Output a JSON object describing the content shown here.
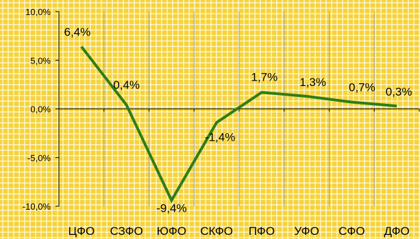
{
  "chart_data": {
    "type": "line",
    "title": "",
    "xlabel": "",
    "ylabel": "",
    "categories": [
      "ЦФО",
      "СЗФО",
      "ЮФО",
      "СКФО",
      "ПФО",
      "УФО",
      "СФО",
      "ДФО"
    ],
    "series": [
      {
        "values": [
          6.4,
          0.4,
          -9.4,
          -1.4,
          1.7,
          1.3,
          0.7,
          0.3
        ],
        "labels": [
          "6,4%",
          "0,4%",
          "-9,4%",
          "-1,4%",
          "1,7%",
          "1,3%",
          "0,7%",
          "0,3%"
        ],
        "color": "#2E7D16"
      }
    ],
    "ylim": [
      -10,
      10
    ],
    "yticks": [
      10,
      5,
      0,
      -5,
      -10
    ],
    "ytick_labels": [
      "10,0%",
      "5,0%",
      "0,0%",
      "-5,0%",
      "-10,0%"
    ],
    "grid": "vertical",
    "legend": "none",
    "colors": {
      "background": "#F5D33A",
      "pattern": "#FFFFFF",
      "line": "#2E7D16",
      "axis": "#000000",
      "gridline": "#A0A0A0"
    }
  }
}
